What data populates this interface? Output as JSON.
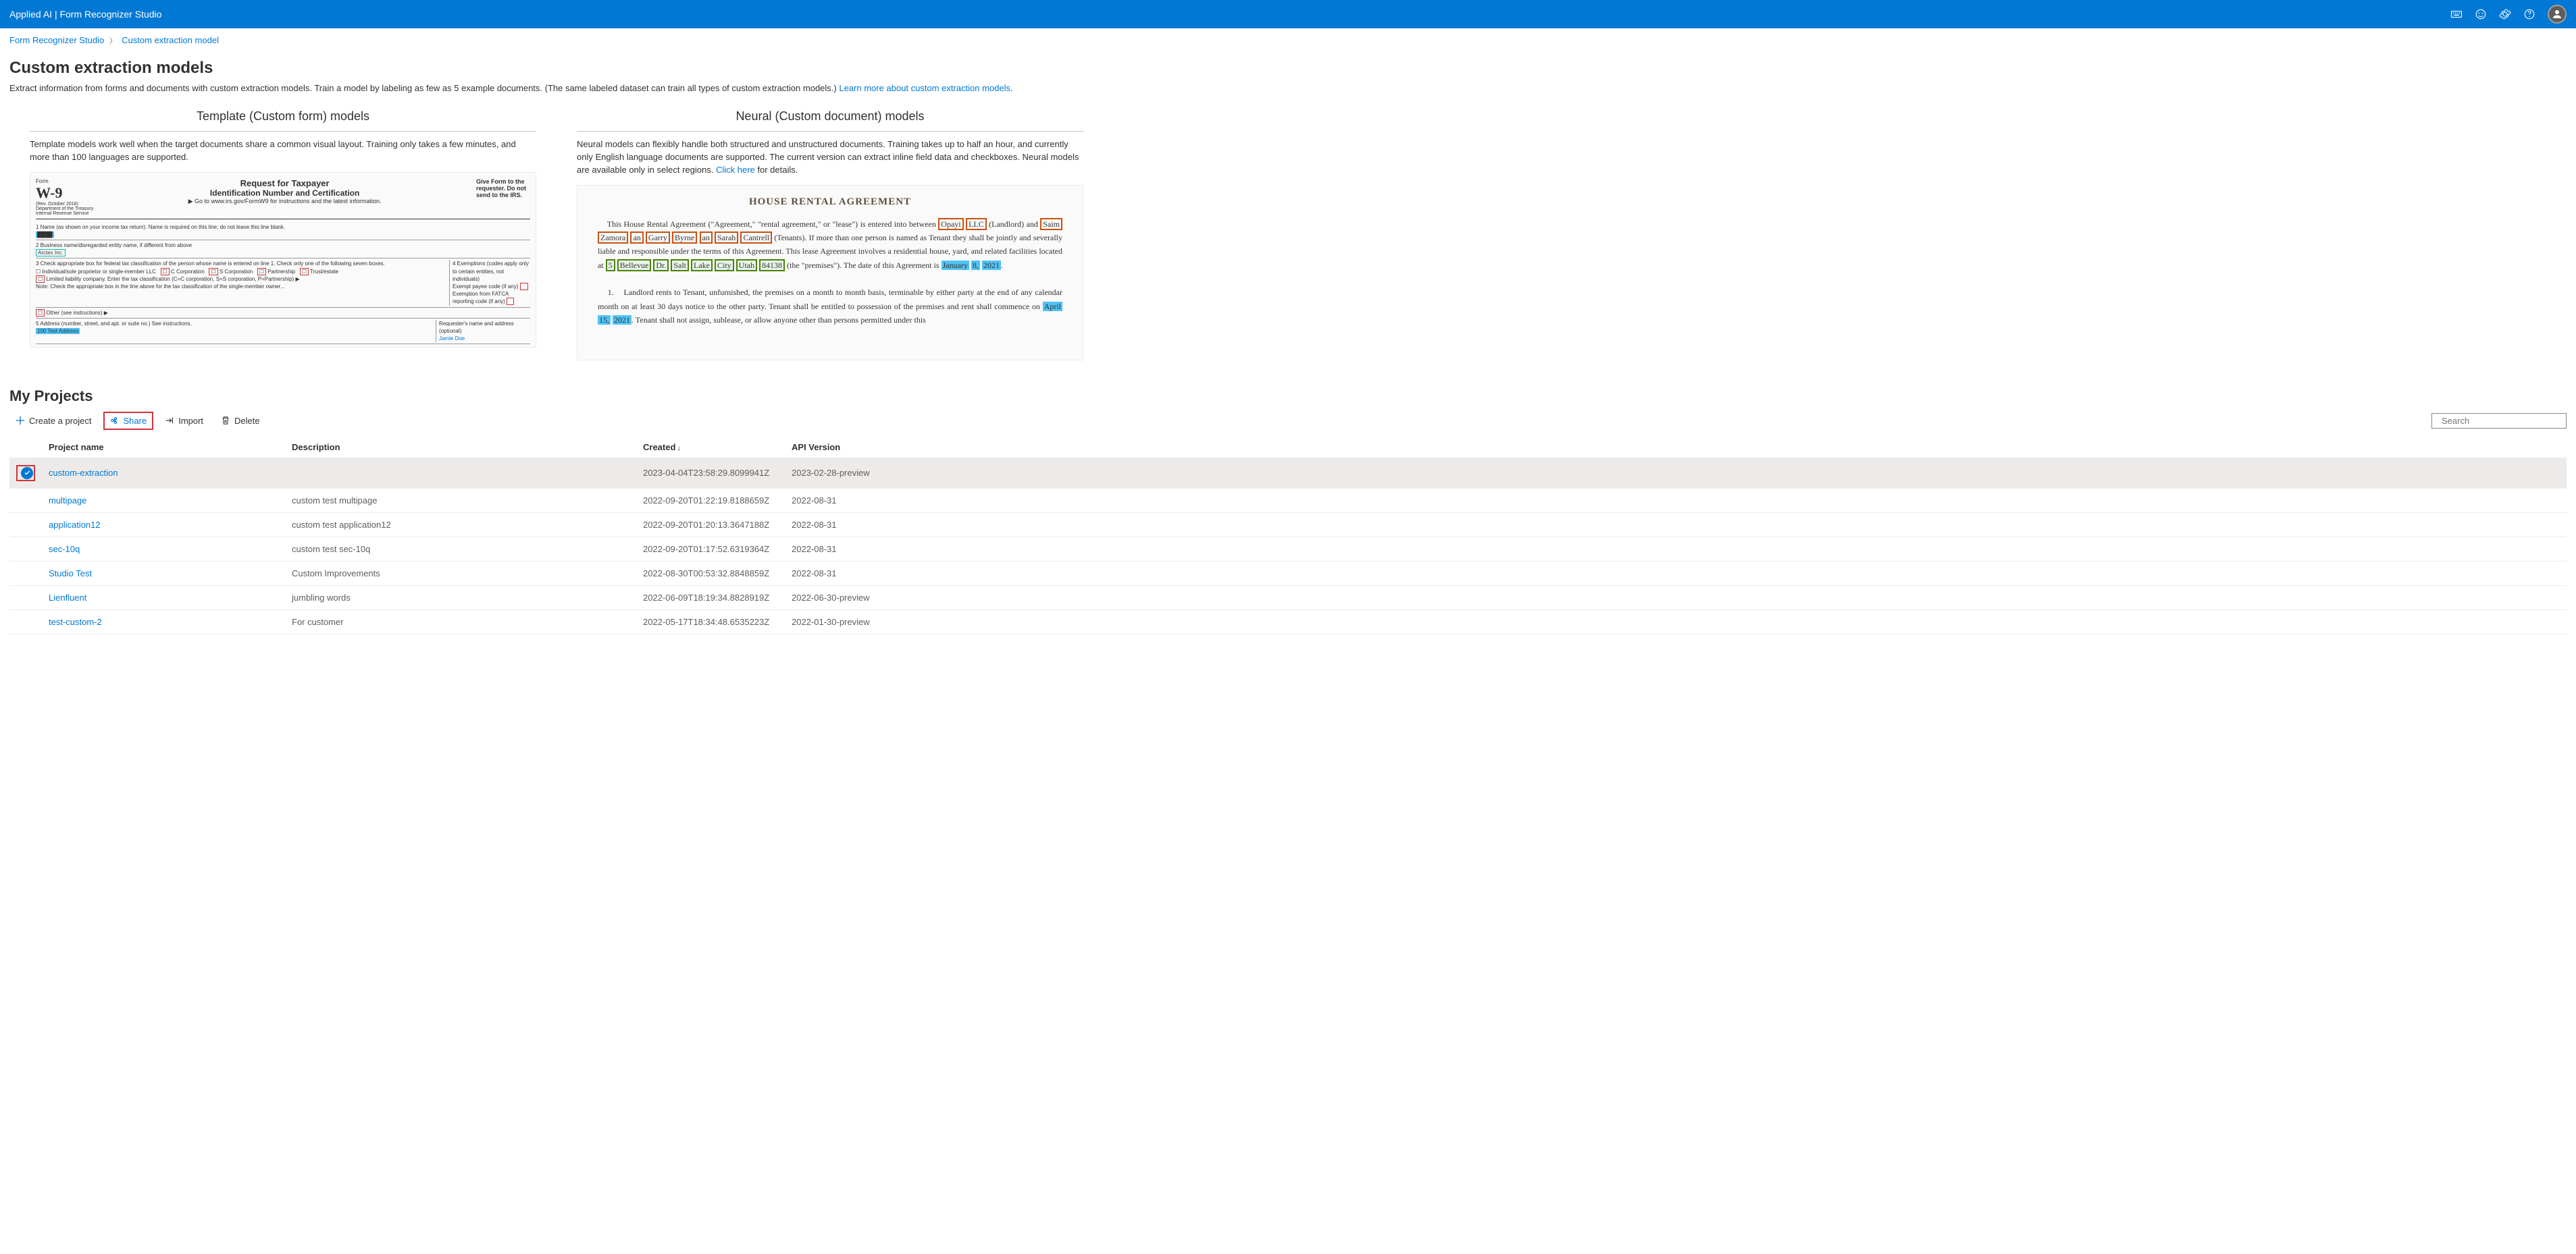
{
  "header": {
    "title": "Applied AI | Form Recognizer Studio"
  },
  "breadcrumb": {
    "root": "Form Recognizer Studio",
    "current": "Custom extraction model"
  },
  "page": {
    "title": "Custom extraction models",
    "description": "Extract information from forms and documents with custom extraction models. Train a model by labeling as few as 5 example documents. (The same labeled dataset can train all types of custom extraction models.) ",
    "learn_more": "Learn more about custom extraction models"
  },
  "template_model": {
    "title": "Template (Custom form) models",
    "description": "Template models work well when the target documents share a common visual layout. Training only takes a few minutes, and more than 100 languages are supported."
  },
  "neural_model": {
    "title": "Neural (Custom document) models",
    "description": "Neural models can flexibly handle both structured and unstructured documents. Training takes up to half an hour, and currently only English language documents are supported. The current version can extract inline field data and checkboxes. Neural models are available only in select regions. ",
    "click_here": "Click here",
    "details": " for details."
  },
  "projects": {
    "title": "My Projects",
    "toolbar": {
      "create": "Create a project",
      "share": "Share",
      "import": "Import",
      "delete": "Delete"
    },
    "search_placeholder": "Search",
    "columns": {
      "name": "Project name",
      "description": "Description",
      "created": "Created",
      "api": "API Version"
    },
    "rows": [
      {
        "name": "custom-extraction",
        "description": "",
        "created": "2023-04-04T23:58:29.8099941Z",
        "api": "2023-02-28-preview"
      },
      {
        "name": "multipage",
        "description": "custom test multipage",
        "created": "2022-09-20T01:22:19.8188659Z",
        "api": "2022-08-31"
      },
      {
        "name": "application12",
        "description": "custom test application12",
        "created": "2022-09-20T01:20:13.3647188Z",
        "api": "2022-08-31"
      },
      {
        "name": "sec-10q",
        "description": "custom test sec-10q",
        "created": "2022-09-20T01:17:52.6319364Z",
        "api": "2022-08-31"
      },
      {
        "name": "Studio Test",
        "description": "Custom Improvements",
        "created": "2022-08-30T00:53:32.8848859Z",
        "api": "2022-08-31"
      },
      {
        "name": "Lienfluent",
        "description": "jumbling words",
        "created": "2022-06-09T18:19:34.8828919Z",
        "api": "2022-06-30-preview"
      },
      {
        "name": "test-custom-2",
        "description": "For customer",
        "created": "2022-05-17T18:34:48.6535223Z",
        "api": "2022-01-30-preview"
      }
    ]
  }
}
